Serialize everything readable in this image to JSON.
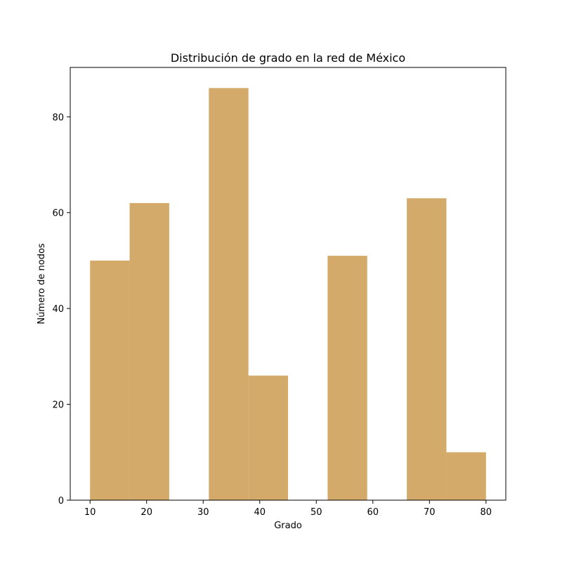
{
  "chart_data": {
    "type": "bar",
    "title": "Distribución de grado en la red de México",
    "xlabel": "Grado",
    "ylabel": "Número de nodos",
    "xlim": [
      6.5,
      83.5
    ],
    "ylim": [
      0,
      90.3
    ],
    "xticks": [
      10,
      20,
      30,
      40,
      50,
      60,
      70,
      80
    ],
    "yticks": [
      0,
      20,
      40,
      60,
      80
    ],
    "bar_color": "#d4aa6a",
    "grid": false,
    "bins": [
      {
        "x0": 10,
        "x1": 17,
        "value": 50
      },
      {
        "x0": 17,
        "x1": 24,
        "value": 62
      },
      {
        "x0": 24,
        "x1": 31,
        "value": 0
      },
      {
        "x0": 31,
        "x1": 38,
        "value": 86
      },
      {
        "x0": 38,
        "x1": 45,
        "value": 26
      },
      {
        "x0": 45,
        "x1": 52,
        "value": 0
      },
      {
        "x0": 52,
        "x1": 59,
        "value": 51
      },
      {
        "x0": 59,
        "x1": 66,
        "value": 0
      },
      {
        "x0": 66,
        "x1": 73,
        "value": 63
      },
      {
        "x0": 73,
        "x1": 80,
        "value": 10
      }
    ]
  }
}
